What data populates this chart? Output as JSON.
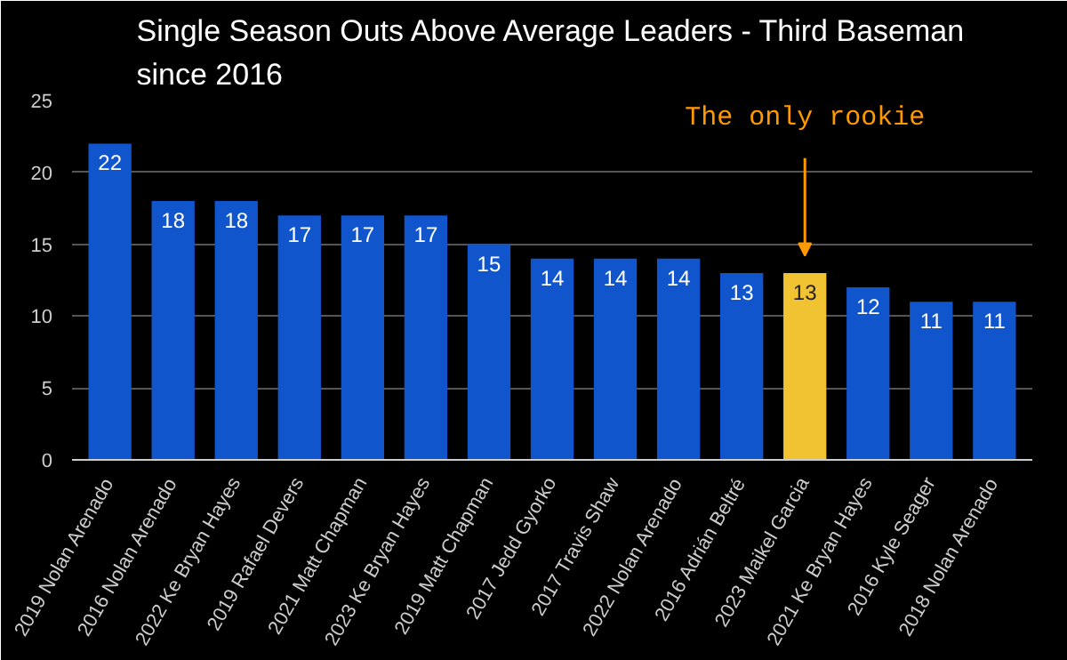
{
  "chart_data": {
    "type": "bar",
    "title": "Single Season Outs Above Average Leaders - Third Baseman since 2016",
    "categories": [
      "2019 Nolan Arenado",
      "2016 Nolan Arenado",
      "2022 Ke Bryan Hayes",
      "2019 Rafael Devers",
      "2021 Matt Chapman",
      "2023 Ke Bryan Hayes",
      "2019 Matt Chapman",
      "2017 Jedd Gyorko",
      "2017 Travis Shaw",
      "2022 Nolan Arenado",
      "2016 Adrián Beltré",
      "2023 Maikel Garcia",
      "2021 Ke Bryan Hayes",
      "2016 Kyle Seager",
      "2018 Nolan Arenado"
    ],
    "values": [
      22,
      18,
      18,
      17,
      17,
      17,
      15,
      14,
      14,
      14,
      13,
      13,
      12,
      11,
      11
    ],
    "colors": [
      "#1155cc",
      "#1155cc",
      "#1155cc",
      "#1155cc",
      "#1155cc",
      "#1155cc",
      "#1155cc",
      "#1155cc",
      "#1155cc",
      "#1155cc",
      "#1155cc",
      "#f1c232",
      "#1155cc",
      "#1155cc",
      "#1155cc"
    ],
    "ylim": [
      0,
      25
    ],
    "yticks": [
      0,
      5,
      10,
      15,
      20,
      25
    ],
    "grid": "y",
    "data_labels": true,
    "annotations": [
      "The only rookie"
    ]
  }
}
